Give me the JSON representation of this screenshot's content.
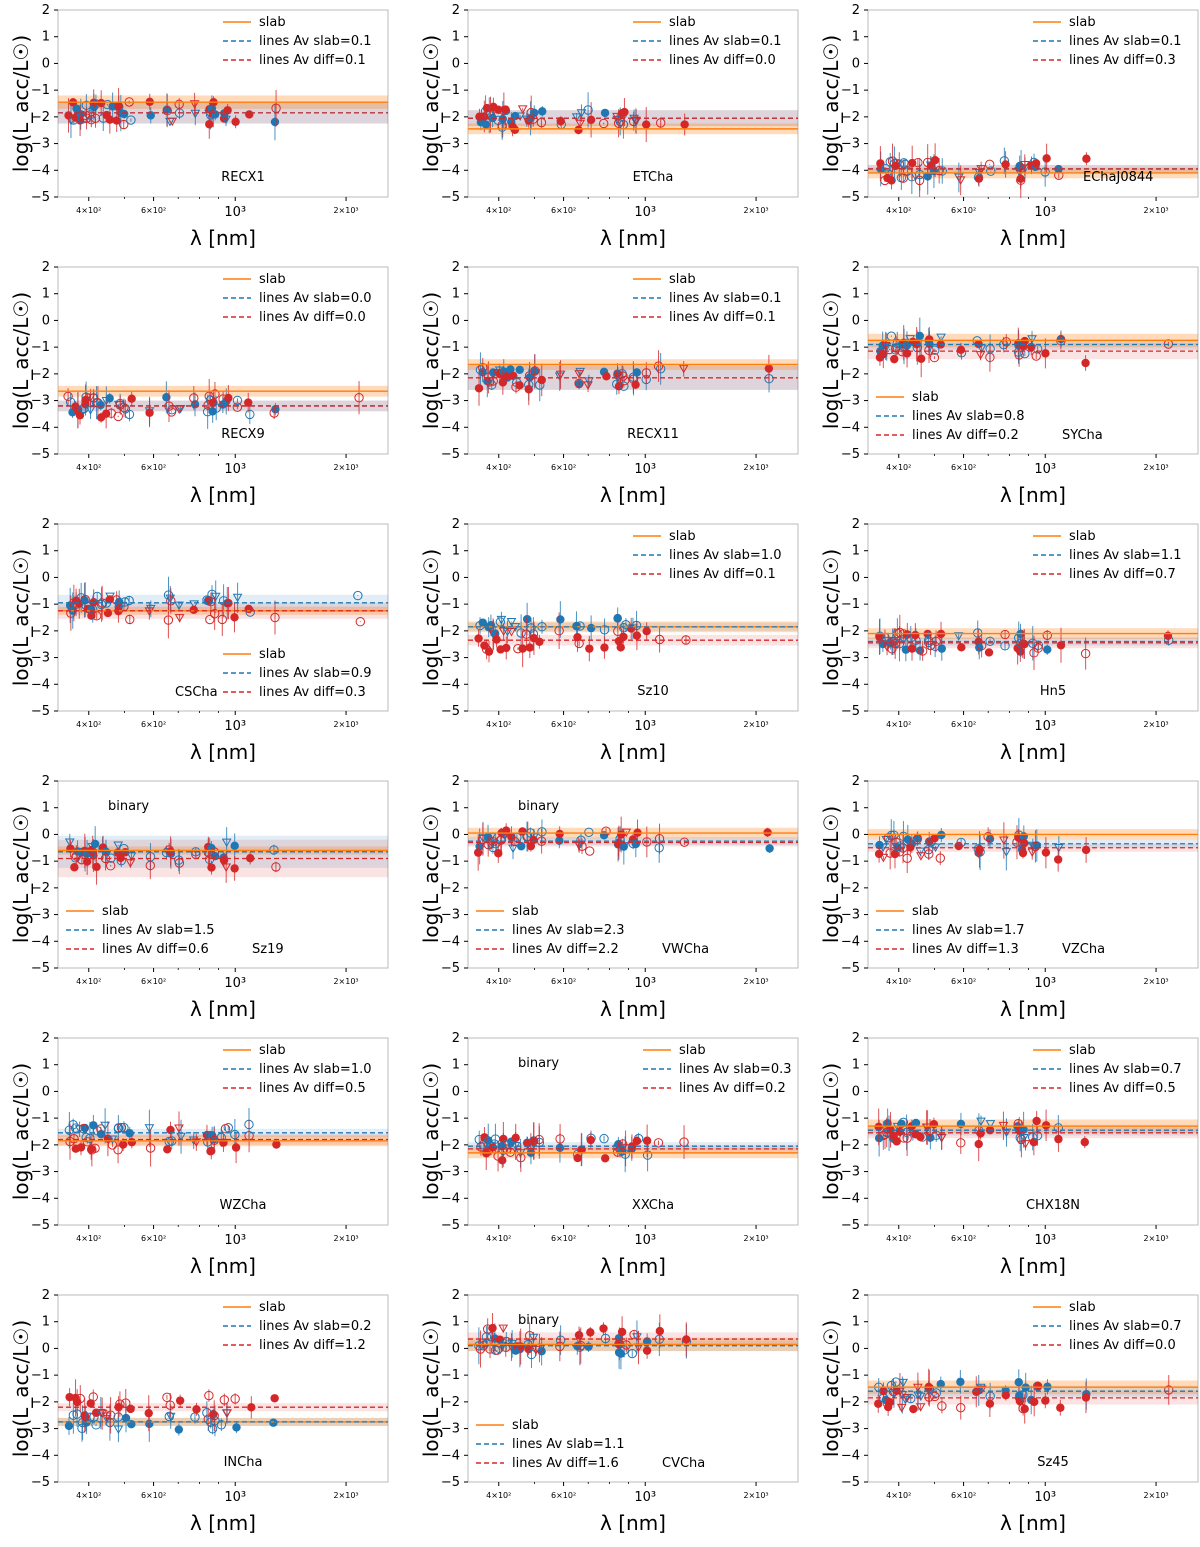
{
  "figure": {
    "colors": {
      "slab": "#ff7f0e",
      "blue": "#1f77b4",
      "red": "#d62728",
      "frame": "#bbbbbb"
    }
  },
  "chart_data": [
    {
      "type": "scatter",
      "name": "RECX1",
      "xlabel": "λ [nm]",
      "ylabel": "log(L_acc/L☉)",
      "ylim": [
        -5,
        2
      ],
      "xscale": "log",
      "xlim": [
        330,
        2600
      ],
      "yticks": [
        "2",
        "1",
        "0",
        "−1",
        "−2",
        "−3",
        "−4",
        "−5"
      ],
      "xticks": [
        "4×10²",
        "6×10²",
        "10³",
        "2×10³"
      ],
      "legend": [
        "slab",
        "lines Av slab=0.1",
        "lines Av diff=0.1"
      ],
      "legend_pos": "top-center",
      "name_pos": "bottom",
      "slab": {
        "value": -1.45,
        "band": 0.25
      },
      "blue_line": {
        "value": -1.85,
        "band": 0.4
      },
      "red_line": {
        "value": -1.85,
        "band": 0.4
      },
      "binary": false
    },
    {
      "type": "scatter",
      "name": "ETCha",
      "xlabel": "λ [nm]",
      "ylabel": "log(L_acc/L☉)",
      "ylim": [
        -5,
        2
      ],
      "xscale": "log",
      "xlim": [
        330,
        2600
      ],
      "yticks": [
        "2",
        "1",
        "0",
        "−1",
        "−2",
        "−3",
        "−4",
        "−5"
      ],
      "xticks": [
        "4×10²",
        "6×10²",
        "10³",
        "2×10³"
      ],
      "legend": [
        "slab",
        "lines Av slab=0.1",
        "lines Av diff=0.0"
      ],
      "legend_pos": "top-center",
      "name_pos": "bottom",
      "slab": {
        "value": -2.45,
        "band": 0.2
      },
      "blue_line": {
        "value": -2.05,
        "band": 0.3
      },
      "red_line": {
        "value": -2.05,
        "band": 0.3
      },
      "binary": false
    },
    {
      "type": "scatter",
      "name": "EChaJ0844",
      "xlabel": "λ [nm]",
      "ylabel": "log(L_acc/L☉)",
      "ylim": [
        -5,
        2
      ],
      "xscale": "log",
      "xlim": [
        330,
        2600
      ],
      "yticks": [
        "2",
        "1",
        "0",
        "−1",
        "−2",
        "−3",
        "−4",
        "−5"
      ],
      "xticks": [
        "4×10²",
        "6×10²",
        "10³",
        "2×10³"
      ],
      "legend": [
        "slab",
        "lines Av slab=0.1",
        "lines Av diff=0.3"
      ],
      "legend_pos": "top-center",
      "name_pos": "bottom-right",
      "slab": {
        "value": -4.1,
        "band": 0.2
      },
      "blue_line": {
        "value": -3.95,
        "band": 0.15
      },
      "red_line": {
        "value": -3.95,
        "band": 0.15
      },
      "binary": false
    },
    {
      "type": "scatter",
      "name": "RECX9",
      "xlabel": "λ [nm]",
      "ylabel": "log(L_acc/L☉)",
      "ylim": [
        -5,
        2
      ],
      "xscale": "log",
      "xlim": [
        330,
        2600
      ],
      "yticks": [
        "2",
        "1",
        "0",
        "−1",
        "−2",
        "−3",
        "−4",
        "−5"
      ],
      "xticks": [
        "4×10²",
        "6×10²",
        "10³",
        "2×10³"
      ],
      "legend": [
        "slab",
        "lines Av slab=0.0",
        "lines Av diff=0.0"
      ],
      "legend_pos": "top-center",
      "name_pos": "bottom",
      "slab": {
        "value": -2.65,
        "band": 0.2
      },
      "blue_line": {
        "value": -3.2,
        "band": 0.2
      },
      "red_line": {
        "value": -3.2,
        "band": 0.2
      },
      "binary": false
    },
    {
      "type": "scatter",
      "name": "RECX11",
      "xlabel": "λ [nm]",
      "ylabel": "log(L_acc/L☉)",
      "ylim": [
        -5,
        2
      ],
      "xscale": "log",
      "xlim": [
        330,
        2600
      ],
      "yticks": [
        "2",
        "1",
        "0",
        "−1",
        "−2",
        "−3",
        "−4",
        "−5"
      ],
      "xticks": [
        "4×10²",
        "6×10²",
        "10³",
        "2×10³"
      ],
      "legend": [
        "slab",
        "lines Av slab=0.1",
        "lines Av diff=0.1"
      ],
      "legend_pos": "top-center",
      "name_pos": "bottom",
      "slab": {
        "value": -1.65,
        "band": 0.2
      },
      "blue_line": {
        "value": -2.15,
        "band": 0.45
      },
      "red_line": {
        "value": -2.15,
        "band": 0.45
      },
      "binary": false
    },
    {
      "type": "scatter",
      "name": "SYCha",
      "xlabel": "λ [nm]",
      "ylabel": "log(L_acc/L☉)",
      "ylim": [
        -5,
        2
      ],
      "xscale": "log",
      "xlim": [
        330,
        2600
      ],
      "yticks": [
        "2",
        "1",
        "0",
        "−1",
        "−2",
        "−3",
        "−4",
        "−5"
      ],
      "xticks": [
        "4×10²",
        "6×10²",
        "10³",
        "2×10³"
      ],
      "legend": [
        "slab",
        "lines Av slab=0.8",
        "lines Av diff=0.2"
      ],
      "legend_pos": "bottom-left",
      "name_pos": "legend-end",
      "slab": {
        "value": -0.75,
        "band": 0.25
      },
      "blue_line": {
        "value": -0.9,
        "band": 0.2
      },
      "red_line": {
        "value": -1.15,
        "band": 0.3
      },
      "binary": false
    },
    {
      "type": "scatter",
      "name": "CSCha",
      "xlabel": "λ [nm]",
      "ylabel": "log(L_acc/L☉)",
      "ylim": [
        -5,
        2
      ],
      "xscale": "log",
      "xlim": [
        330,
        2600
      ],
      "yticks": [
        "2",
        "1",
        "0",
        "−1",
        "−2",
        "−3",
        "−4",
        "−5"
      ],
      "xticks": [
        "4×10²",
        "6×10²",
        "10³",
        "2×10³"
      ],
      "legend": [
        "slab",
        "lines Av slab=0.9",
        "lines Av diff=0.3"
      ],
      "legend_pos": "bottom-center",
      "name_pos": "legend-left",
      "slab": {
        "value": -1.25,
        "band": 0.15
      },
      "blue_line": {
        "value": -0.95,
        "band": 0.3
      },
      "red_line": {
        "value": -1.25,
        "band": 0.3
      },
      "binary": false
    },
    {
      "type": "scatter",
      "name": "Sz10",
      "xlabel": "λ [nm]",
      "ylabel": "log(L_acc/L☉)",
      "ylim": [
        -5,
        2
      ],
      "xscale": "log",
      "xlim": [
        330,
        2600
      ],
      "yticks": [
        "2",
        "1",
        "0",
        "−1",
        "−2",
        "−3",
        "−4",
        "−5"
      ],
      "xticks": [
        "4×10²",
        "6×10²",
        "10³",
        "2×10³"
      ],
      "legend": [
        "slab",
        "lines Av slab=1.0",
        "lines Av diff=0.1"
      ],
      "legend_pos": "top-center",
      "name_pos": "bottom",
      "slab": {
        "value": -1.85,
        "band": 0.2
      },
      "blue_line": {
        "value": -1.85,
        "band": 0.15
      },
      "red_line": {
        "value": -2.35,
        "band": 0.2
      },
      "binary": false
    },
    {
      "type": "scatter",
      "name": "Hn5",
      "xlabel": "λ [nm]",
      "ylabel": "log(L_acc/L☉)",
      "ylim": [
        -5,
        2
      ],
      "xscale": "log",
      "xlim": [
        330,
        2600
      ],
      "yticks": [
        "2",
        "1",
        "0",
        "−1",
        "−2",
        "−3",
        "−4",
        "−5"
      ],
      "xticks": [
        "4×10²",
        "6×10²",
        "10³",
        "2×10³"
      ],
      "legend": [
        "slab",
        "lines Av slab=1.1",
        "lines Av diff=0.7"
      ],
      "legend_pos": "top-center",
      "name_pos": "bottom",
      "slab": {
        "value": -2.1,
        "band": 0.2
      },
      "blue_line": {
        "value": -2.4,
        "band": 0.15
      },
      "red_line": {
        "value": -2.45,
        "band": 0.2
      },
      "binary": false
    },
    {
      "type": "scatter",
      "name": "Sz19",
      "xlabel": "λ [nm]",
      "ylabel": "log(L_acc/L☉)",
      "ylim": [
        -5,
        2
      ],
      "xscale": "log",
      "xlim": [
        330,
        2600
      ],
      "yticks": [
        "2",
        "1",
        "0",
        "−1",
        "−2",
        "−3",
        "−4",
        "−5"
      ],
      "xticks": [
        "4×10²",
        "6×10²",
        "10³",
        "2×10³"
      ],
      "legend": [
        "slab",
        "lines Av slab=1.5",
        "lines Av diff=0.6"
      ],
      "legend_pos": "bottom-left",
      "name_pos": "legend-end",
      "slab": {
        "value": -0.6,
        "band": 0.15
      },
      "blue_line": {
        "value": -0.65,
        "band": 0.6
      },
      "red_line": {
        "value": -0.9,
        "band": 0.7
      },
      "binary": true,
      "binary_label": "binary"
    },
    {
      "type": "scatter",
      "name": "VWCha",
      "xlabel": "λ [nm]",
      "ylabel": "log(L_acc/L☉)",
      "ylim": [
        -5,
        2
      ],
      "xscale": "log",
      "xlim": [
        330,
        2600
      ],
      "yticks": [
        "2",
        "1",
        "0",
        "−1",
        "−2",
        "−3",
        "−4",
        "−5"
      ],
      "xticks": [
        "4×10²",
        "6×10²",
        "10³",
        "2×10³"
      ],
      "legend": [
        "slab",
        "lines Av slab=2.3",
        "lines Av diff=2.2"
      ],
      "legend_pos": "bottom-left",
      "name_pos": "legend-end",
      "slab": {
        "value": 0.05,
        "band": 0.2
      },
      "blue_line": {
        "value": -0.25,
        "band": 0.15
      },
      "red_line": {
        "value": -0.3,
        "band": 0.15
      },
      "binary": true,
      "binary_label": "binary"
    },
    {
      "type": "scatter",
      "name": "VZCha",
      "xlabel": "λ [nm]",
      "ylabel": "log(L_acc/L☉)",
      "ylim": [
        -5,
        2
      ],
      "xscale": "log",
      "xlim": [
        330,
        2600
      ],
      "yticks": [
        "2",
        "1",
        "0",
        "−1",
        "−2",
        "−3",
        "−4",
        "−5"
      ],
      "xticks": [
        "4×10²",
        "6×10²",
        "10³",
        "2×10³"
      ],
      "legend": [
        "slab",
        "lines Av slab=1.7",
        "lines Av diff=1.3"
      ],
      "legend_pos": "bottom-left",
      "name_pos": "legend-end",
      "slab": {
        "value": 0.0,
        "band": 0.2
      },
      "blue_line": {
        "value": -0.35,
        "band": 0.15
      },
      "red_line": {
        "value": -0.5,
        "band": 0.15
      },
      "binary": false
    },
    {
      "type": "scatter",
      "name": "WZCha",
      "xlabel": "λ [nm]",
      "ylabel": "log(L_acc/L☉)",
      "ylim": [
        -5,
        2
      ],
      "xscale": "log",
      "xlim": [
        330,
        2600
      ],
      "yticks": [
        "2",
        "1",
        "0",
        "−1",
        "−2",
        "−3",
        "−4",
        "−5"
      ],
      "xticks": [
        "4×10²",
        "6×10²",
        "10³",
        "2×10³"
      ],
      "legend": [
        "slab",
        "lines Av slab=1.0",
        "lines Av diff=0.5"
      ],
      "legend_pos": "top-center",
      "name_pos": "bottom",
      "slab": {
        "value": -1.85,
        "band": 0.2
      },
      "blue_line": {
        "value": -1.55,
        "band": 0.15
      },
      "red_line": {
        "value": -1.8,
        "band": 0.2
      },
      "binary": false
    },
    {
      "type": "scatter",
      "name": "XXCha",
      "xlabel": "λ [nm]",
      "ylabel": "log(L_acc/L☉)",
      "ylim": [
        -5,
        2
      ],
      "xscale": "log",
      "xlim": [
        330,
        2600
      ],
      "yticks": [
        "2",
        "1",
        "0",
        "−1",
        "−2",
        "−3",
        "−4",
        "−5"
      ],
      "xticks": [
        "4×10²",
        "6×10²",
        "10³",
        "2×10³"
      ],
      "legend": [
        "slab",
        "lines Av slab=0.3",
        "lines Av diff=0.2"
      ],
      "legend_pos": "top-right",
      "name_pos": "bottom",
      "slab": {
        "value": -2.3,
        "band": 0.2
      },
      "blue_line": {
        "value": -2.05,
        "band": 0.15
      },
      "red_line": {
        "value": -2.15,
        "band": 0.15
      },
      "binary": true,
      "binary_label": "binary"
    },
    {
      "type": "scatter",
      "name": "CHX18N",
      "xlabel": "λ [nm]",
      "ylabel": "log(L_acc/L☉)",
      "ylim": [
        -5,
        2
      ],
      "xscale": "log",
      "xlim": [
        330,
        2600
      ],
      "yticks": [
        "2",
        "1",
        "0",
        "−1",
        "−2",
        "−3",
        "−4",
        "−5"
      ],
      "xticks": [
        "4×10²",
        "6×10²",
        "10³",
        "2×10³"
      ],
      "legend": [
        "slab",
        "lines Av slab=0.7",
        "lines Av diff=0.5"
      ],
      "legend_pos": "top-center",
      "name_pos": "bottom",
      "slab": {
        "value": -1.3,
        "band": 0.25
      },
      "blue_line": {
        "value": -1.45,
        "band": 0.2
      },
      "red_line": {
        "value": -1.55,
        "band": 0.2
      },
      "binary": false
    },
    {
      "type": "scatter",
      "name": "INCha",
      "xlabel": "λ [nm]",
      "ylabel": "log(L_acc/L☉)",
      "ylim": [
        -5,
        2
      ],
      "xscale": "log",
      "xlim": [
        330,
        2600
      ],
      "yticks": [
        "2",
        "1",
        "0",
        "−1",
        "−2",
        "−3",
        "−4",
        "−5"
      ],
      "xticks": [
        "4×10²",
        "6×10²",
        "10³",
        "2×10³"
      ],
      "legend": [
        "slab",
        "lines Av slab=0.2",
        "lines Av diff=1.2"
      ],
      "legend_pos": "top-center",
      "name_pos": "bottom",
      "slab": {
        "value": -2.75,
        "band": 0.15
      },
      "blue_line": {
        "value": -2.75,
        "band": 0.15
      },
      "red_line": {
        "value": -2.2,
        "band": 0.15
      },
      "binary": false
    },
    {
      "type": "scatter",
      "name": "CVCha",
      "xlabel": "λ [nm]",
      "ylabel": "log(L_acc/L☉)",
      "ylim": [
        -5,
        2
      ],
      "xscale": "log",
      "xlim": [
        330,
        2600
      ],
      "yticks": [
        "2",
        "1",
        "0",
        "−1",
        "−2",
        "−3",
        "−4",
        "−5"
      ],
      "xticks": [
        "4×10²",
        "6×10²",
        "10³",
        "2×10³"
      ],
      "legend": [
        "slab",
        "lines Av slab=1.1",
        "lines Av diff=1.6"
      ],
      "legend_pos": "bottom-left",
      "name_pos": "legend-end",
      "slab": {
        "value": 0.15,
        "band": 0.25
      },
      "blue_line": {
        "value": 0.1,
        "band": 0.2
      },
      "red_line": {
        "value": 0.35,
        "band": 0.25
      },
      "binary": true,
      "binary_label": "binary"
    },
    {
      "type": "scatter",
      "name": "Sz45",
      "xlabel": "λ [nm]",
      "ylabel": "log(L_acc/L☉)",
      "ylim": [
        -5,
        2
      ],
      "xscale": "log",
      "xlim": [
        330,
        2600
      ],
      "yticks": [
        "2",
        "1",
        "0",
        "−1",
        "−2",
        "−3",
        "−4",
        "−5"
      ],
      "xticks": [
        "4×10²",
        "6×10²",
        "10³",
        "2×10³"
      ],
      "legend": [
        "slab",
        "lines Av slab=0.7",
        "lines Av diff=0.0"
      ],
      "legend_pos": "top-center",
      "name_pos": "bottom",
      "slab": {
        "value": -1.45,
        "band": 0.25
      },
      "blue_line": {
        "value": -1.6,
        "band": 0.2
      },
      "red_line": {
        "value": -1.85,
        "band": 0.25
      },
      "binary": false
    }
  ]
}
